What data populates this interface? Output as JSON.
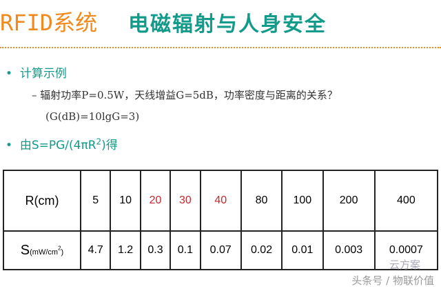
{
  "header": {
    "system": "RFID系统",
    "title": "电磁辐射与人身安全"
  },
  "bullets": [
    {
      "text": "计算示例",
      "sub": [
        "辐射功率P=0.5W，天线增益G=5dB，功率密度与距离的关系？",
        "(G(dB)=10lgG=3)"
      ]
    },
    {
      "text_parts": [
        "由S=PG/(4πR",
        "2",
        ")得"
      ]
    }
  ],
  "table": {
    "r_label": "R(cm)",
    "s_label": {
      "main": "S",
      "unit": "(mW/cm",
      "sup": "2",
      "close": ")"
    },
    "r_values": [
      "5",
      "10",
      "20",
      "30",
      "40",
      "80",
      "100",
      "200",
      "400"
    ],
    "r_colors": [
      "#000000",
      "#000000",
      "#c8262b",
      "#c8262b",
      "#c8262b",
      "#000000",
      "#000000",
      "#000000",
      "#000000"
    ],
    "s_values": [
      "4.7",
      "1.2",
      "0.3",
      "0.1",
      "0.07",
      "0.02",
      "0.01",
      "0.003",
      "0.0007"
    ]
  },
  "watermark": {
    "logo": "云方案",
    "text": "头条号 / 物联价值"
  }
}
